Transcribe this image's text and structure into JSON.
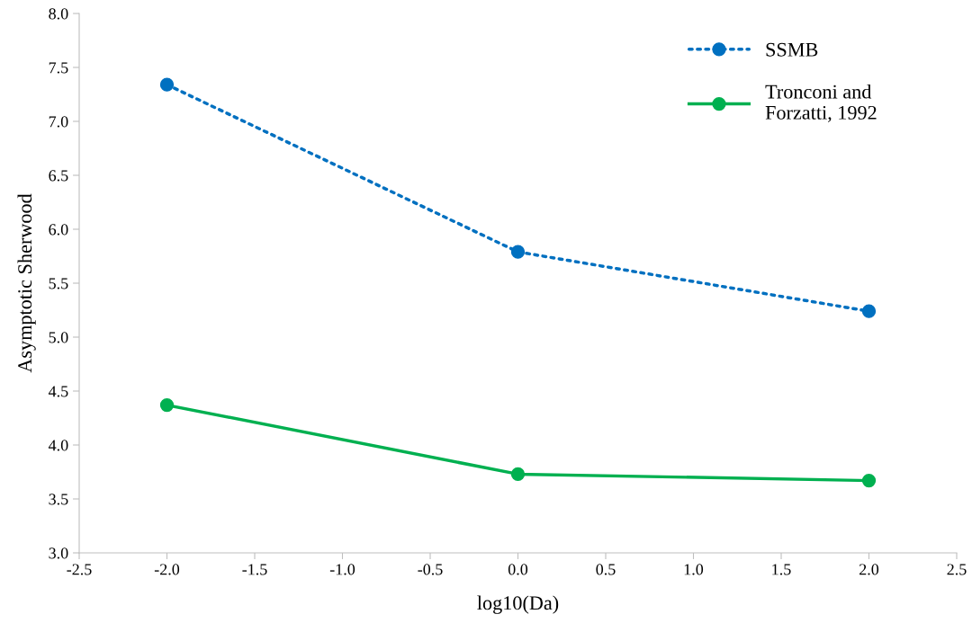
{
  "chart_data": {
    "type": "line",
    "xlabel": "log10(Da)",
    "ylabel": "Asymptotic Sherwood",
    "x": [
      -2.0,
      0.0,
      2.0
    ],
    "series": [
      {
        "name": "SSMB",
        "color": "#0070c0",
        "values": [
          7.34,
          5.79,
          5.24
        ],
        "line_style": "dotted"
      },
      {
        "name": "Tronconi and\nForzatti, 1992",
        "color": "#00b050",
        "values": [
          4.37,
          3.73,
          3.67
        ],
        "line_style": "solid"
      }
    ],
    "xlim": [
      -2.5,
      2.5
    ],
    "xticks": [
      {
        "value": -2.5,
        "label": "-2.5"
      },
      {
        "value": -2.0,
        "label": "-2.0"
      },
      {
        "value": -1.5,
        "label": "-1.5"
      },
      {
        "value": -1.0,
        "label": "-1.0"
      },
      {
        "value": -0.5,
        "label": "-0.5"
      },
      {
        "value": 0.0,
        "label": "0.0"
      },
      {
        "value": 0.5,
        "label": "0.5"
      },
      {
        "value": 1.0,
        "label": "1.0"
      },
      {
        "value": 1.5,
        "label": "1.5"
      },
      {
        "value": 2.0,
        "label": "2.0"
      },
      {
        "value": 2.5,
        "label": "2.5"
      }
    ],
    "ylim": [
      3.0,
      8.0
    ],
    "yticks": [
      {
        "value": 3.0,
        "label": "3.0"
      },
      {
        "value": 3.5,
        "label": "3.5"
      },
      {
        "value": 4.0,
        "label": "4.0"
      },
      {
        "value": 4.5,
        "label": "4.5"
      },
      {
        "value": 5.0,
        "label": "5.0"
      },
      {
        "value": 5.5,
        "label": "5.5"
      },
      {
        "value": 6.0,
        "label": "6.0"
      },
      {
        "value": 6.5,
        "label": "6.5"
      },
      {
        "value": 7.0,
        "label": "7.0"
      },
      {
        "value": 7.5,
        "label": "7.5"
      },
      {
        "value": 8.0,
        "label": "8.0"
      }
    ],
    "marker": "circle",
    "legend": "top right",
    "grid": false
  }
}
